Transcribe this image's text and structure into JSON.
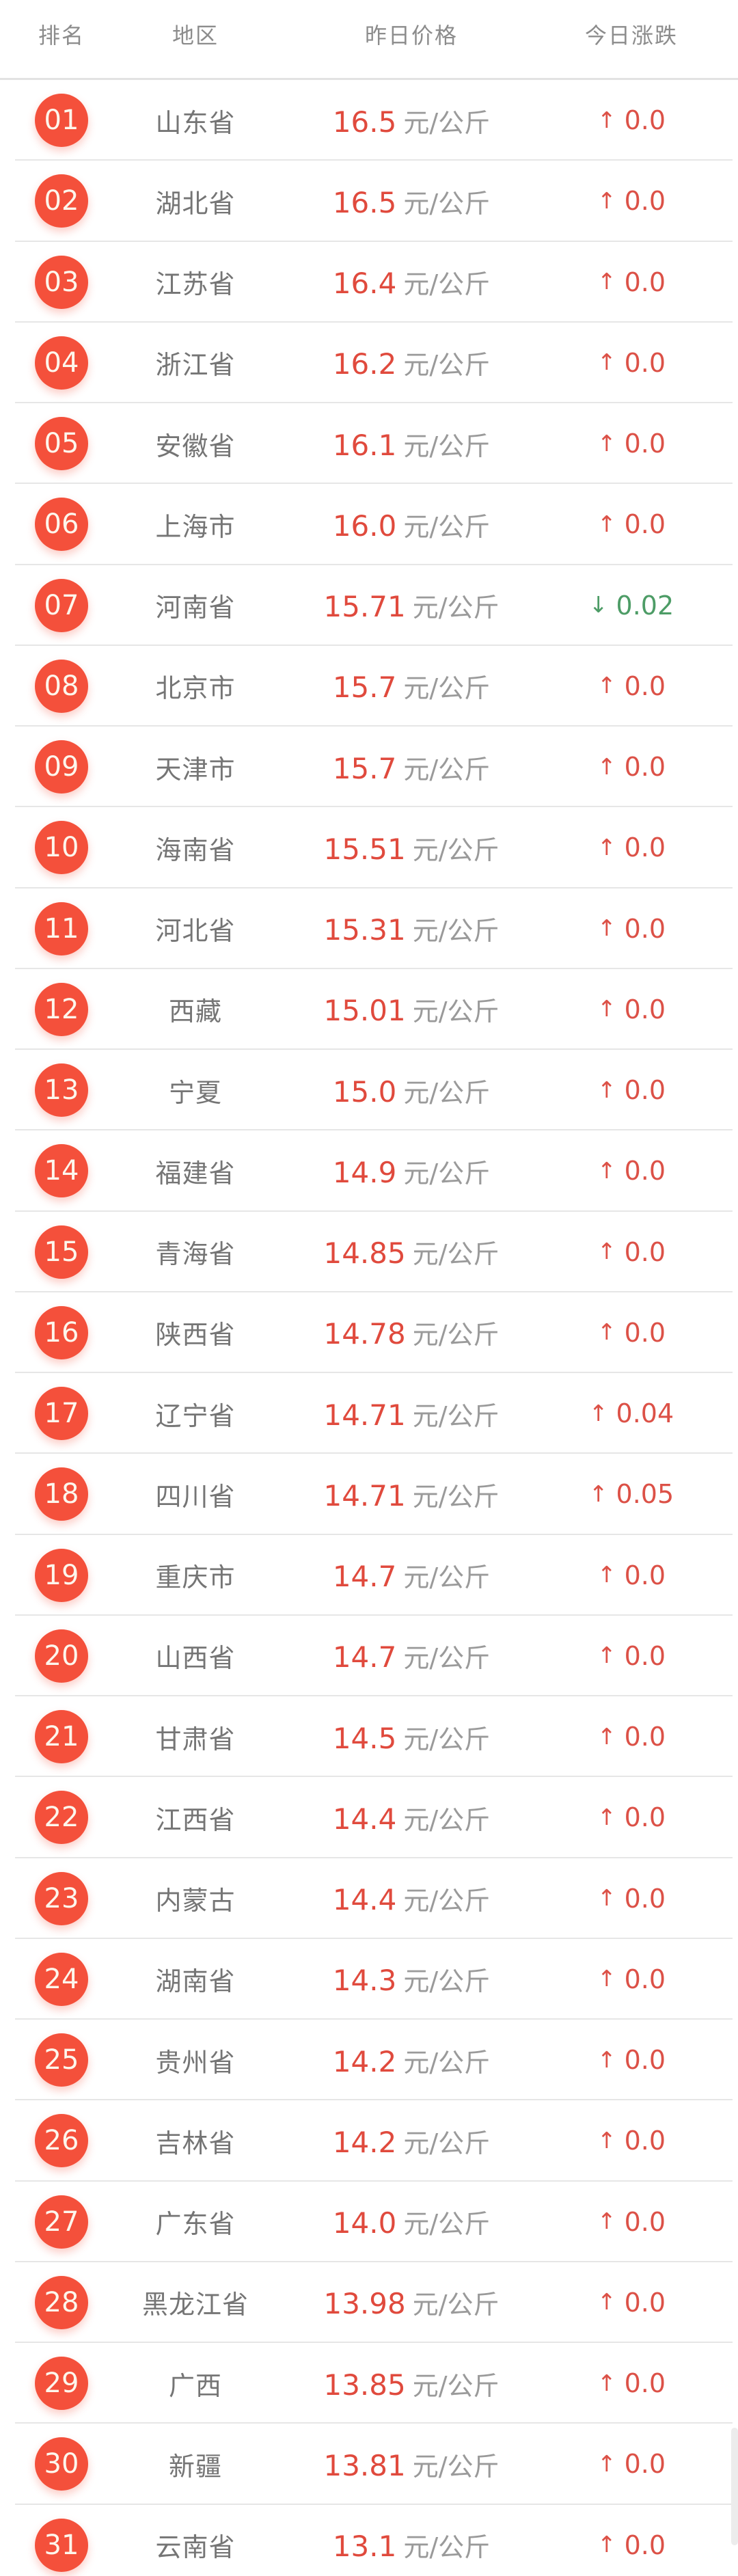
{
  "table": {
    "columns": {
      "rank": "排名",
      "region": "地区",
      "price": "昨日价格",
      "change": "今日涨跌"
    },
    "price_unit": "元/公斤",
    "rows": [
      {
        "rank": "01",
        "region": "山东省",
        "price": "16.5",
        "change": "0.0",
        "direction": "up"
      },
      {
        "rank": "02",
        "region": "湖北省",
        "price": "16.5",
        "change": "0.0",
        "direction": "up"
      },
      {
        "rank": "03",
        "region": "江苏省",
        "price": "16.4",
        "change": "0.0",
        "direction": "up"
      },
      {
        "rank": "04",
        "region": "浙江省",
        "price": "16.2",
        "change": "0.0",
        "direction": "up"
      },
      {
        "rank": "05",
        "region": "安徽省",
        "price": "16.1",
        "change": "0.0",
        "direction": "up"
      },
      {
        "rank": "06",
        "region": "上海市",
        "price": "16.0",
        "change": "0.0",
        "direction": "up"
      },
      {
        "rank": "07",
        "region": "河南省",
        "price": "15.71",
        "change": "0.02",
        "direction": "down"
      },
      {
        "rank": "08",
        "region": "北京市",
        "price": "15.7",
        "change": "0.0",
        "direction": "up"
      },
      {
        "rank": "09",
        "region": "天津市",
        "price": "15.7",
        "change": "0.0",
        "direction": "up"
      },
      {
        "rank": "10",
        "region": "海南省",
        "price": "15.51",
        "change": "0.0",
        "direction": "up"
      },
      {
        "rank": "11",
        "region": "河北省",
        "price": "15.31",
        "change": "0.0",
        "direction": "up"
      },
      {
        "rank": "12",
        "region": "西藏",
        "price": "15.01",
        "change": "0.0",
        "direction": "up"
      },
      {
        "rank": "13",
        "region": "宁夏",
        "price": "15.0",
        "change": "0.0",
        "direction": "up"
      },
      {
        "rank": "14",
        "region": "福建省",
        "price": "14.9",
        "change": "0.0",
        "direction": "up"
      },
      {
        "rank": "15",
        "region": "青海省",
        "price": "14.85",
        "change": "0.0",
        "direction": "up"
      },
      {
        "rank": "16",
        "region": "陕西省",
        "price": "14.78",
        "change": "0.0",
        "direction": "up"
      },
      {
        "rank": "17",
        "region": "辽宁省",
        "price": "14.71",
        "change": "0.04",
        "direction": "up"
      },
      {
        "rank": "18",
        "region": "四川省",
        "price": "14.71",
        "change": "0.05",
        "direction": "up"
      },
      {
        "rank": "19",
        "region": "重庆市",
        "price": "14.7",
        "change": "0.0",
        "direction": "up"
      },
      {
        "rank": "20",
        "region": "山西省",
        "price": "14.7",
        "change": "0.0",
        "direction": "up"
      },
      {
        "rank": "21",
        "region": "甘肃省",
        "price": "14.5",
        "change": "0.0",
        "direction": "up"
      },
      {
        "rank": "22",
        "region": "江西省",
        "price": "14.4",
        "change": "0.0",
        "direction": "up"
      },
      {
        "rank": "23",
        "region": "内蒙古",
        "price": "14.4",
        "change": "0.0",
        "direction": "up"
      },
      {
        "rank": "24",
        "region": "湖南省",
        "price": "14.3",
        "change": "0.0",
        "direction": "up"
      },
      {
        "rank": "25",
        "region": "贵州省",
        "price": "14.2",
        "change": "0.0",
        "direction": "up"
      },
      {
        "rank": "26",
        "region": "吉林省",
        "price": "14.2",
        "change": "0.0",
        "direction": "up"
      },
      {
        "rank": "27",
        "region": "广东省",
        "price": "14.0",
        "change": "0.0",
        "direction": "up"
      },
      {
        "rank": "28",
        "region": "黑龙江省",
        "price": "13.98",
        "change": "0.0",
        "direction": "up"
      },
      {
        "rank": "29",
        "region": "广西",
        "price": "13.85",
        "change": "0.0",
        "direction": "up"
      },
      {
        "rank": "30",
        "region": "新疆",
        "price": "13.81",
        "change": "0.0",
        "direction": "up"
      },
      {
        "rank": "31",
        "region": "云南省",
        "price": "13.1",
        "change": "0.0",
        "direction": "up"
      }
    ]
  },
  "icons": {
    "up_arrow": "↑",
    "down_arrow": "↓"
  },
  "colors": {
    "badge": "#f4503b",
    "price": "#e04a3d",
    "up": "#dc5147",
    "down": "#4d9c66"
  }
}
